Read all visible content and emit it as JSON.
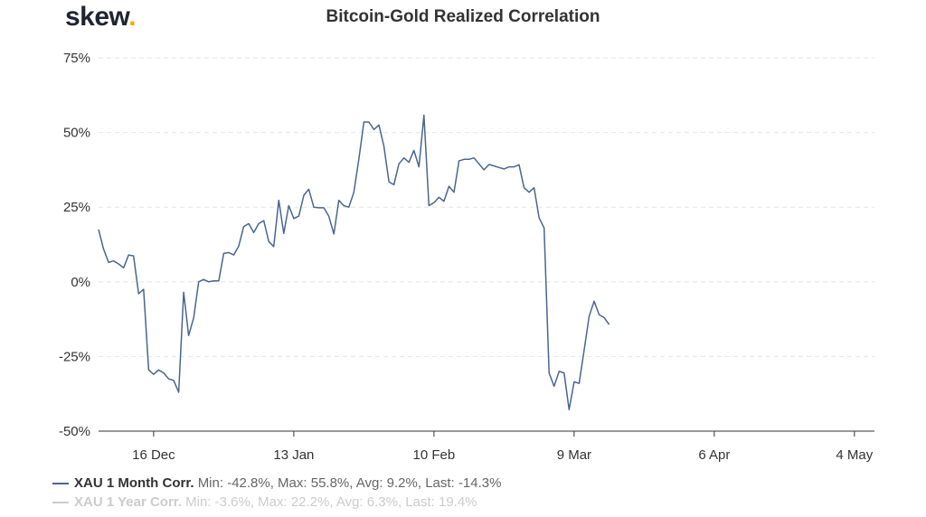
{
  "brand": {
    "name": "skew",
    "dot": "."
  },
  "chart_data": {
    "type": "line",
    "title": "Bitcoin-Gold Realized Correlation",
    "ylim": [
      -50,
      75
    ],
    "yticks": [
      -50,
      -25,
      0,
      25,
      50,
      75
    ],
    "ytick_labels": [
      "-50%",
      "-25%",
      "0%",
      "25%",
      "50%",
      "75%"
    ],
    "x_range": [
      "2019-12-05",
      "2020-05-08"
    ],
    "xticks": [
      "2019-12-16",
      "2020-01-13",
      "2020-02-10",
      "2020-03-09",
      "2020-04-06",
      "2020-05-04"
    ],
    "xtick_labels": [
      "16 Dec",
      "13 Jan",
      "10 Feb",
      "9 Mar",
      "6 Apr",
      "4 May"
    ],
    "grid": true,
    "legend_position": "bottom-left",
    "colors": {
      "line": "#4a6591",
      "grid": "#e6e6e6",
      "axis": "#333333"
    },
    "series": [
      {
        "name": "XAU 1 Month Corr.",
        "stats": "Min: -42.8%, Max: 55.8%, Avg: 9.2%, Last: -14.3%",
        "color": "#4a6591",
        "visible": true,
        "points": [
          [
            "2019-12-05",
            17.5
          ],
          [
            "2019-12-06",
            11
          ],
          [
            "2019-12-07",
            6.5
          ],
          [
            "2019-12-08",
            7
          ],
          [
            "2019-12-09",
            6
          ],
          [
            "2019-12-10",
            4.7
          ],
          [
            "2019-12-11",
            9
          ],
          [
            "2019-12-12",
            8.7
          ],
          [
            "2019-12-13",
            -4
          ],
          [
            "2019-12-14",
            -2.5
          ],
          [
            "2019-12-15",
            -29.5
          ],
          [
            "2019-12-16",
            -31
          ],
          [
            "2019-12-17",
            -29.5
          ],
          [
            "2019-12-18",
            -30.5
          ],
          [
            "2019-12-19",
            -32.5
          ],
          [
            "2019-12-20",
            -33
          ],
          [
            "2019-12-21",
            -37
          ],
          [
            "2019-12-22",
            -3.5
          ],
          [
            "2019-12-23",
            -18
          ],
          [
            "2019-12-24",
            -12
          ],
          [
            "2019-12-25",
            0
          ],
          [
            "2019-12-26",
            0.8
          ],
          [
            "2019-12-27",
            0
          ],
          [
            "2019-12-28",
            0.3
          ],
          [
            "2019-12-29",
            0.3
          ],
          [
            "2019-12-30",
            9.5
          ],
          [
            "2019-12-31",
            9.8
          ],
          [
            "2020-01-01",
            9
          ],
          [
            "2020-01-02",
            12
          ],
          [
            "2020-01-03",
            18.5
          ],
          [
            "2020-01-04",
            19.5
          ],
          [
            "2020-01-05",
            16.5
          ],
          [
            "2020-01-06",
            19.5
          ],
          [
            "2020-01-07",
            20.5
          ],
          [
            "2020-01-08",
            13.5
          ],
          [
            "2020-01-09",
            11.8
          ],
          [
            "2020-01-10",
            27.3
          ],
          [
            "2020-01-11",
            16.2
          ],
          [
            "2020-01-12",
            25.5
          ],
          [
            "2020-01-13",
            21.2
          ],
          [
            "2020-01-14",
            22
          ],
          [
            "2020-01-15",
            29
          ],
          [
            "2020-01-16",
            31
          ],
          [
            "2020-01-17",
            25
          ],
          [
            "2020-01-18",
            24.8
          ],
          [
            "2020-01-19",
            24.8
          ],
          [
            "2020-01-20",
            22
          ],
          [
            "2020-01-21",
            16
          ],
          [
            "2020-01-22",
            27.3
          ],
          [
            "2020-01-23",
            25.5
          ],
          [
            "2020-01-24",
            25
          ],
          [
            "2020-01-25",
            30
          ],
          [
            "2020-01-26",
            41
          ],
          [
            "2020-01-27",
            53.5
          ],
          [
            "2020-01-28",
            53.5
          ],
          [
            "2020-01-29",
            51
          ],
          [
            "2020-01-30",
            52.5
          ],
          [
            "2020-01-31",
            45.5
          ],
          [
            "2020-02-01",
            33.5
          ],
          [
            "2020-02-02",
            32.5
          ],
          [
            "2020-02-03",
            39.5
          ],
          [
            "2020-02-04",
            41.5
          ],
          [
            "2020-02-05",
            40
          ],
          [
            "2020-02-06",
            44
          ],
          [
            "2020-02-07",
            38.5
          ],
          [
            "2020-02-08",
            55.8
          ],
          [
            "2020-02-09",
            25.5
          ],
          [
            "2020-02-10",
            26.5
          ],
          [
            "2020-02-11",
            28.3
          ],
          [
            "2020-02-12",
            27
          ],
          [
            "2020-02-13",
            32
          ],
          [
            "2020-02-14",
            30
          ],
          [
            "2020-02-15",
            40.5
          ],
          [
            "2020-02-16",
            41
          ],
          [
            "2020-02-17",
            41
          ],
          [
            "2020-02-18",
            41.5
          ],
          [
            "2020-02-19",
            39.5
          ],
          [
            "2020-02-20",
            37.5
          ],
          [
            "2020-02-21",
            39.3
          ],
          [
            "2020-02-22",
            38.8
          ],
          [
            "2020-02-23",
            38.3
          ],
          [
            "2020-02-24",
            37.8
          ],
          [
            "2020-02-25",
            38.5
          ],
          [
            "2020-02-26",
            38.5
          ],
          [
            "2020-02-27",
            39.2
          ],
          [
            "2020-02-28",
            31.5
          ],
          [
            "2020-02-29",
            30
          ],
          [
            "2020-03-01",
            31.5
          ],
          [
            "2020-03-02",
            21.5
          ],
          [
            "2020-03-03",
            18
          ],
          [
            "2020-03-04",
            -30.5
          ],
          [
            "2020-03-05",
            -35
          ],
          [
            "2020-03-06",
            -30
          ],
          [
            "2020-03-07",
            -30.5
          ],
          [
            "2020-03-08",
            -42.8
          ],
          [
            "2020-03-09",
            -33.5
          ],
          [
            "2020-03-10",
            -34
          ],
          [
            "2020-03-11",
            -23
          ],
          [
            "2020-03-12",
            -11.5
          ],
          [
            "2020-03-13",
            -6.5
          ],
          [
            "2020-03-14",
            -11
          ],
          [
            "2020-03-15",
            -12
          ],
          [
            "2020-03-16",
            -14.3
          ]
        ]
      },
      {
        "name": "XAU 1 Year Corr.",
        "stats": "Min: -3.6%, Max: 22.2%, Avg: 6.3%, Last: 19.4%",
        "color": "#cccccc",
        "visible": false,
        "points": []
      }
    ]
  }
}
